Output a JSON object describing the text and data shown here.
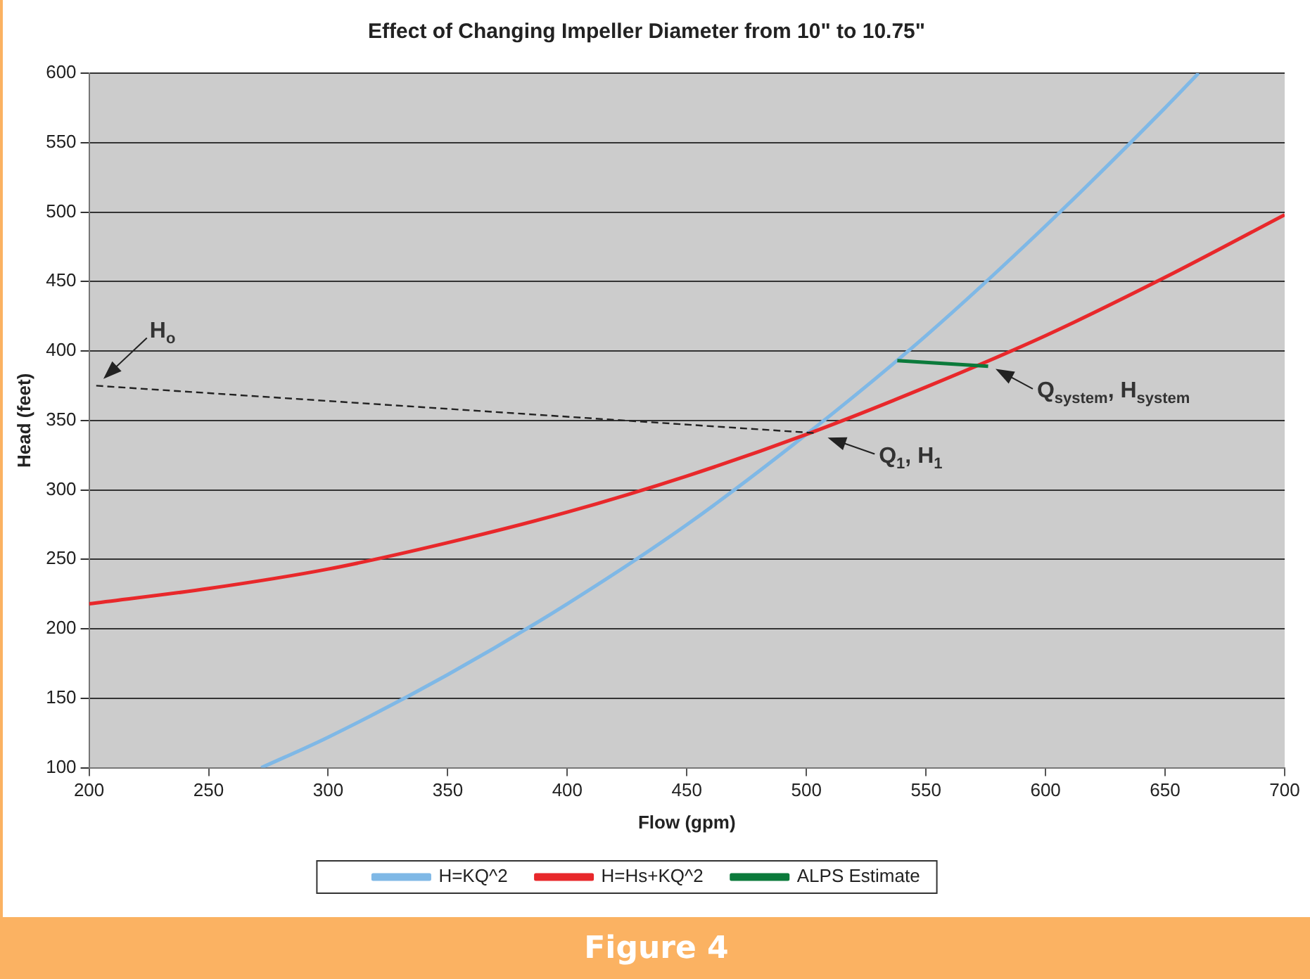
{
  "chart_data": {
    "type": "line",
    "title": "Effect of Changing Impeller Diameter from 10\" to 10.75\"",
    "xlabel": "Flow (gpm)",
    "ylabel": "Head (feet)",
    "xlim": [
      200,
      700
    ],
    "xticks": [
      200,
      250,
      300,
      350,
      400,
      450,
      500,
      550,
      600,
      650,
      700
    ],
    "ylim": [
      100,
      600
    ],
    "yticks": [
      100,
      150,
      200,
      250,
      300,
      350,
      400,
      450,
      500,
      550,
      600
    ],
    "grid": "y",
    "legend": "bottom",
    "marker": "none",
    "series": [
      {
        "name": "H=KQ^2",
        "color": "#7fb8e6",
        "x": [
          272,
          300,
          350,
          400,
          450,
          500,
          550,
          600,
          650,
          664
        ],
        "values": [
          100,
          122,
          167,
          218,
          275,
          340,
          411,
          490,
          575,
          600
        ]
      },
      {
        "name": "H=Hs+KQ^2",
        "color": "#e8282b",
        "x": [
          200,
          250,
          300,
          350,
          400,
          450,
          500,
          550,
          600,
          650,
          700
        ],
        "values": [
          218,
          229,
          243,
          262,
          284,
          310,
          340,
          374,
          411,
          453,
          498
        ]
      },
      {
        "name": "ALPS Estimate",
        "color": "#0b7a3b",
        "x": [
          538,
          576
        ],
        "values": [
          393,
          389
        ]
      },
      {
        "color": "#222222",
        "line_style": "dashed",
        "x": [
          203,
          503
        ],
        "values": [
          375,
          341
        ]
      }
    ],
    "annotations": [
      {
        "text": "H$_{o}$",
        "x": 203,
        "y": 375
      },
      {
        "text": "Q$_{1}$, H$_{1}$",
        "x": 505,
        "y": 340
      },
      {
        "text": "Q$_{system}$, H$_{system}$",
        "x": 577,
        "y": 389
      },
      "Figure 4"
    ]
  }
}
